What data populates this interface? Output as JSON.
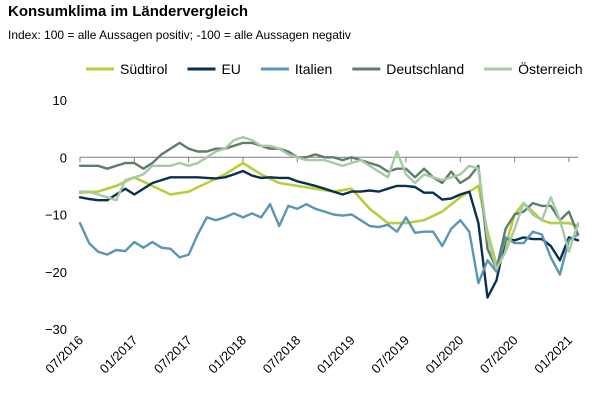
{
  "chart_data": {
    "type": "line",
    "title": "Konsumklima im Ländervergleich",
    "subtitle": "Index: 100 = alle Aussagen positiv; -100 =  alle Aussagen negativ",
    "ylim": [
      -30,
      10
    ],
    "yticks": [
      10,
      0,
      -10,
      -20,
      -30
    ],
    "xlim": [
      "2016-07",
      "2021-02"
    ],
    "xticks": [
      "07/2016",
      "01/2017",
      "07/2017",
      "01/2018",
      "07/2018",
      "01/2019",
      "07/2019",
      "01/2020",
      "07/2020",
      "01/2021"
    ],
    "x": [
      "2016-07",
      "2016-08",
      "2016-09",
      "2016-10",
      "2016-11",
      "2016-12",
      "2017-01",
      "2017-02",
      "2017-03",
      "2017-04",
      "2017-05",
      "2017-06",
      "2017-07",
      "2017-08",
      "2017-09",
      "2017-10",
      "2017-11",
      "2017-12",
      "2018-01",
      "2018-02",
      "2018-03",
      "2018-04",
      "2018-05",
      "2018-06",
      "2018-07",
      "2018-08",
      "2018-09",
      "2018-10",
      "2018-11",
      "2018-12",
      "2019-01",
      "2019-02",
      "2019-03",
      "2019-04",
      "2019-05",
      "2019-06",
      "2019-07",
      "2019-08",
      "2019-09",
      "2019-10",
      "2019-11",
      "2019-12",
      "2020-01",
      "2020-02",
      "2020-03",
      "2020-04",
      "2020-05",
      "2020-06",
      "2020-07",
      "2020-08",
      "2020-09",
      "2020-10",
      "2020-11",
      "2020-12",
      "2021-01",
      "2021-02"
    ],
    "grid": false,
    "legend_position": "top",
    "series": [
      {
        "name": "Südtirol",
        "color": "#b8cf3c",
        "width": 2.6,
        "values": [
          -6.2,
          null,
          -6.0,
          null,
          -5.0,
          null,
          -3.5,
          null,
          -5.0,
          null,
          -6.5,
          null,
          -6.0,
          null,
          -4.5,
          null,
          -3.0,
          null,
          -1.0,
          null,
          -3.0,
          null,
          -4.5,
          null,
          -5.0,
          null,
          -5.5,
          null,
          -6.0,
          null,
          -5.5,
          null,
          -9.0,
          null,
          -11.5,
          null,
          -11.5,
          null,
          -11.0,
          null,
          -9.5,
          null,
          -7.0,
          null,
          -5.0,
          -13.0,
          -18.8,
          -15.5,
          -10.0,
          -8.0,
          -9.5,
          -11.0,
          -11.5,
          -11.5,
          -11.5,
          -12.0
        ]
      },
      {
        "name": "EU",
        "color": "#0a3050",
        "width": 2.4,
        "values": [
          -7.0,
          -7.3,
          -7.5,
          -7.5,
          -6.5,
          -5.5,
          -6.5,
          -5.5,
          -4.5,
          -4.0,
          -3.5,
          -3.5,
          -3.5,
          -3.5,
          -3.6,
          -3.7,
          -3.5,
          -3.0,
          -2.4,
          -3.2,
          -3.6,
          -3.5,
          -3.6,
          -3.6,
          -4.2,
          -4.6,
          -5.0,
          -5.5,
          -6.0,
          -6.5,
          -6.0,
          -6.0,
          -5.8,
          -6.0,
          -5.5,
          -5.0,
          -5.0,
          -5.2,
          -6.2,
          -6.2,
          -7.4,
          -7.2,
          -6.5,
          -6.0,
          -11.5,
          -24.5,
          -21.5,
          -14.2,
          -14.5,
          -14.0,
          -14.3,
          -14.3,
          -15.5,
          -18.0,
          -14.0,
          -14.5
        ]
      },
      {
        "name": "Italien",
        "color": "#5b96b4",
        "width": 2.4,
        "values": [
          -11.5,
          -15.0,
          -16.5,
          -17.0,
          -16.2,
          -16.4,
          -14.8,
          -15.8,
          -14.8,
          -15.8,
          -16.0,
          -17.5,
          -17.0,
          -13.5,
          -10.5,
          -11.0,
          -10.5,
          -9.8,
          -10.5,
          -9.8,
          -10.5,
          -8.2,
          -12.0,
          -8.5,
          -9.0,
          -8.2,
          -9.0,
          -9.5,
          -10.0,
          -10.2,
          -10.0,
          -11.0,
          -12.0,
          -12.2,
          -11.8,
          -13.0,
          -10.5,
          -13.2,
          -13.0,
          -13.0,
          -15.5,
          -12.5,
          -11.0,
          -13.0,
          -22.0,
          -18.0,
          -20.0,
          -14.0,
          -15.0,
          -15.0,
          -13.0,
          -13.5,
          -17.5,
          -20.5,
          -14.5,
          -13.5
        ]
      },
      {
        "name": "Deutschland",
        "color": "#5f7d6c",
        "width": 2.4,
        "values": [
          -1.5,
          -1.5,
          -1.5,
          -2.0,
          -1.5,
          -1.0,
          -1.0,
          -2.0,
          -1.0,
          0.5,
          1.5,
          2.5,
          1.5,
          1.0,
          1.0,
          1.5,
          1.5,
          2.0,
          2.5,
          2.5,
          2.0,
          1.5,
          1.5,
          1.0,
          0.0,
          0.0,
          0.5,
          0.0,
          0.0,
          -0.5,
          0.0,
          -0.5,
          -1.0,
          -1.5,
          -2.5,
          -2.0,
          -2.0,
          -3.5,
          -2.0,
          -3.5,
          -4.5,
          -2.5,
          -4.5,
          -3.5,
          -1.5,
          -16.0,
          -19.5,
          -12.5,
          -10.0,
          -9.5,
          -8.0,
          -8.5,
          -8.5,
          -11.0,
          -9.5,
          -13.5
        ]
      },
      {
        "name": "Österreich",
        "color": "#a8c9a4",
        "width": 2.4,
        "values": [
          -6.0,
          -6.0,
          -6.5,
          -7.0,
          -7.5,
          -4.0,
          -3.5,
          -3.0,
          -1.5,
          -1.5,
          -1.5,
          -1.0,
          -1.5,
          -1.0,
          0.0,
          1.0,
          1.5,
          3.0,
          3.5,
          3.0,
          2.0,
          2.0,
          1.5,
          0.5,
          0.0,
          -0.5,
          -0.5,
          -0.5,
          -1.0,
          -1.5,
          -1.0,
          -0.5,
          -1.5,
          -2.5,
          -3.5,
          1.0,
          -3.0,
          -4.5,
          -3.0,
          -3.5,
          -4.0,
          -3.5,
          -3.0,
          -1.5,
          -2.0,
          -14.0,
          -19.5,
          -16.5,
          -12.5,
          -8.0,
          -10.0,
          -11.0,
          -7.0,
          -11.0,
          -16.5,
          -11.5
        ]
      }
    ]
  }
}
